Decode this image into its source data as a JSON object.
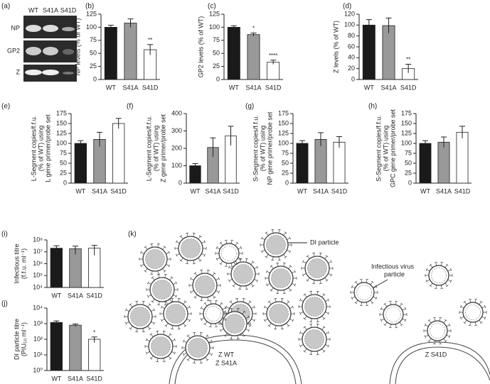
{
  "blot": {
    "panel": "(a)",
    "lanes": [
      "WT",
      "S41A",
      "S41D"
    ],
    "rows": [
      "NP",
      "GP2",
      "Z"
    ]
  },
  "chart_data": [
    {
      "type": "bar",
      "panel": "(b)",
      "ylabel": [
        "NP levels (% of WT)"
      ],
      "categories": [
        "WT",
        "S41A",
        "S41D"
      ],
      "values": [
        100,
        108,
        57
      ],
      "errors": [
        4,
        8,
        10
      ],
      "value_annotations": [
        null,
        null,
        "**"
      ],
      "colors": [
        "#1a1a1a",
        "#999999",
        "#ffffff"
      ],
      "ylim": [
        0,
        125
      ],
      "yticks": [
        0,
        25,
        50,
        75,
        100,
        125
      ]
    },
    {
      "type": "bar",
      "panel": "(c)",
      "ylabel": [
        "GP2 levels (% of WT)"
      ],
      "categories": [
        "WT",
        "S41A",
        "S41D"
      ],
      "values": [
        100,
        86,
        33
      ],
      "errors": [
        3,
        3,
        4
      ],
      "value_annotations": [
        null,
        "*",
        "****"
      ],
      "colors": [
        "#1a1a1a",
        "#999999",
        "#ffffff"
      ],
      "ylim": [
        0,
        125
      ],
      "yticks": [
        0,
        25,
        50,
        75,
        100,
        125
      ]
    },
    {
      "type": "bar",
      "panel": "(d)",
      "ylabel": [
        "Z levels (% of WT)"
      ],
      "categories": [
        "WT",
        "S41A",
        "S41D"
      ],
      "values": [
        100,
        99,
        20
      ],
      "errors": [
        10,
        14,
        8
      ],
      "value_annotations": [
        null,
        null,
        "**"
      ],
      "colors": [
        "#1a1a1a",
        "#999999",
        "#ffffff"
      ],
      "ylim": [
        0,
        120
      ],
      "yticks": [
        0,
        20,
        40,
        60,
        80,
        100,
        120
      ]
    },
    {
      "type": "bar",
      "panel": "(e)",
      "ylabel": [
        "L-Segment copies/f.f.u.",
        "(% of WT) using",
        "L gene primer/probe set"
      ],
      "categories": [
        "WT",
        "S41A",
        "S41D"
      ],
      "values": [
        100,
        110,
        150
      ],
      "errors": [
        7,
        18,
        13
      ],
      "colors": [
        "#1a1a1a",
        "#999999",
        "#ffffff"
      ],
      "ylim": [
        0,
        175
      ],
      "yticks": [
        0,
        25,
        50,
        75,
        100,
        125,
        150,
        175
      ]
    },
    {
      "type": "bar",
      "panel": "(f)",
      "ylabel": [
        "L-Segment copies/f.f.u.",
        "(% of WT) using",
        "Z gene primer/probe set"
      ],
      "categories": [
        "WT",
        "S41A",
        "S41D"
      ],
      "values": [
        100,
        205,
        272
      ],
      "errors": [
        12,
        55,
        55
      ],
      "colors": [
        "#1a1a1a",
        "#999999",
        "#ffffff"
      ],
      "ylim": [
        0,
        400
      ],
      "yticks": [
        0,
        100,
        200,
        300,
        400
      ]
    },
    {
      "type": "bar",
      "panel": "(g)",
      "ylabel": [
        "S-Segment copies/f.f.u.",
        "(% of WT) using",
        "NP gene primer/probe set"
      ],
      "categories": [
        "WT",
        "S41A",
        "S41D"
      ],
      "values": [
        100,
        110,
        103
      ],
      "errors": [
        7,
        17,
        14
      ],
      "colors": [
        "#1a1a1a",
        "#999999",
        "#ffffff"
      ],
      "ylim": [
        0,
        175
      ],
      "yticks": [
        0,
        25,
        50,
        75,
        100,
        125,
        150,
        175
      ]
    },
    {
      "type": "bar",
      "panel": "(h)",
      "ylabel": [
        "S-Segment copies/f.f.u.",
        "(% of WT) using",
        "GPC gene primer/probe set"
      ],
      "categories": [
        "WT",
        "S41A",
        "S41D"
      ],
      "values": [
        100,
        103,
        128
      ],
      "errors": [
        7,
        13,
        15
      ],
      "colors": [
        "#1a1a1a",
        "#999999",
        "#ffffff"
      ],
      "ylim": [
        0,
        175
      ],
      "yticks": [
        0,
        25,
        50,
        75,
        100,
        125,
        150,
        175
      ]
    },
    {
      "type": "bar",
      "panel": "(i)",
      "ylabel": [
        "Infectious titre",
        "(f.f.u. ml⁻¹)"
      ],
      "log_scale": true,
      "categories": [
        "WT",
        "S41A",
        "S41D"
      ],
      "values": [
        20000000,
        18000000,
        20000000
      ],
      "errors": [
        12000000,
        12000000,
        15000000
      ],
      "colors": [
        "#1a1a1a",
        "#999999",
        "#ffffff"
      ],
      "ylim": [
        10000,
        100000000
      ],
      "yticks": [
        {
          "value": 10000,
          "label": "10⁴"
        },
        {
          "value": 100000,
          "label": "10⁵"
        },
        {
          "value": 1000000,
          "label": "10⁶"
        },
        {
          "value": 10000000,
          "label": "10⁷"
        },
        {
          "value": 100000000,
          "label": "10⁸"
        }
      ]
    },
    {
      "type": "bar",
      "panel": "(j)",
      "ylabel": [
        "DI particle titre",
        "(PIU₅₀ ml⁻¹)"
      ],
      "log_scale": true,
      "categories": [
        "WT",
        "S41A",
        "S41D"
      ],
      "values": [
        1200,
        800,
        100
      ],
      "errors": [
        300,
        150,
        40
      ],
      "value_annotations": [
        null,
        null,
        "*"
      ],
      "colors": [
        "#1a1a1a",
        "#999999",
        "#ffffff"
      ],
      "ylim": [
        1,
        10000
      ],
      "yticks": [
        {
          "value": 1,
          "label": "10⁰"
        },
        {
          "value": 10,
          "label": "10¹"
        },
        {
          "value": 100,
          "label": "10²"
        },
        {
          "value": 1000,
          "label": "10³"
        },
        {
          "value": 10000,
          "label": "10⁴"
        }
      ]
    }
  ],
  "diagram": {
    "panel": "(k)",
    "di_label": "DI particle",
    "virus_label": [
      "Infectious virus",
      "particle"
    ],
    "left_labels": [
      "Z WT",
      "Z S41A"
    ],
    "right_label": "Z S41D"
  }
}
